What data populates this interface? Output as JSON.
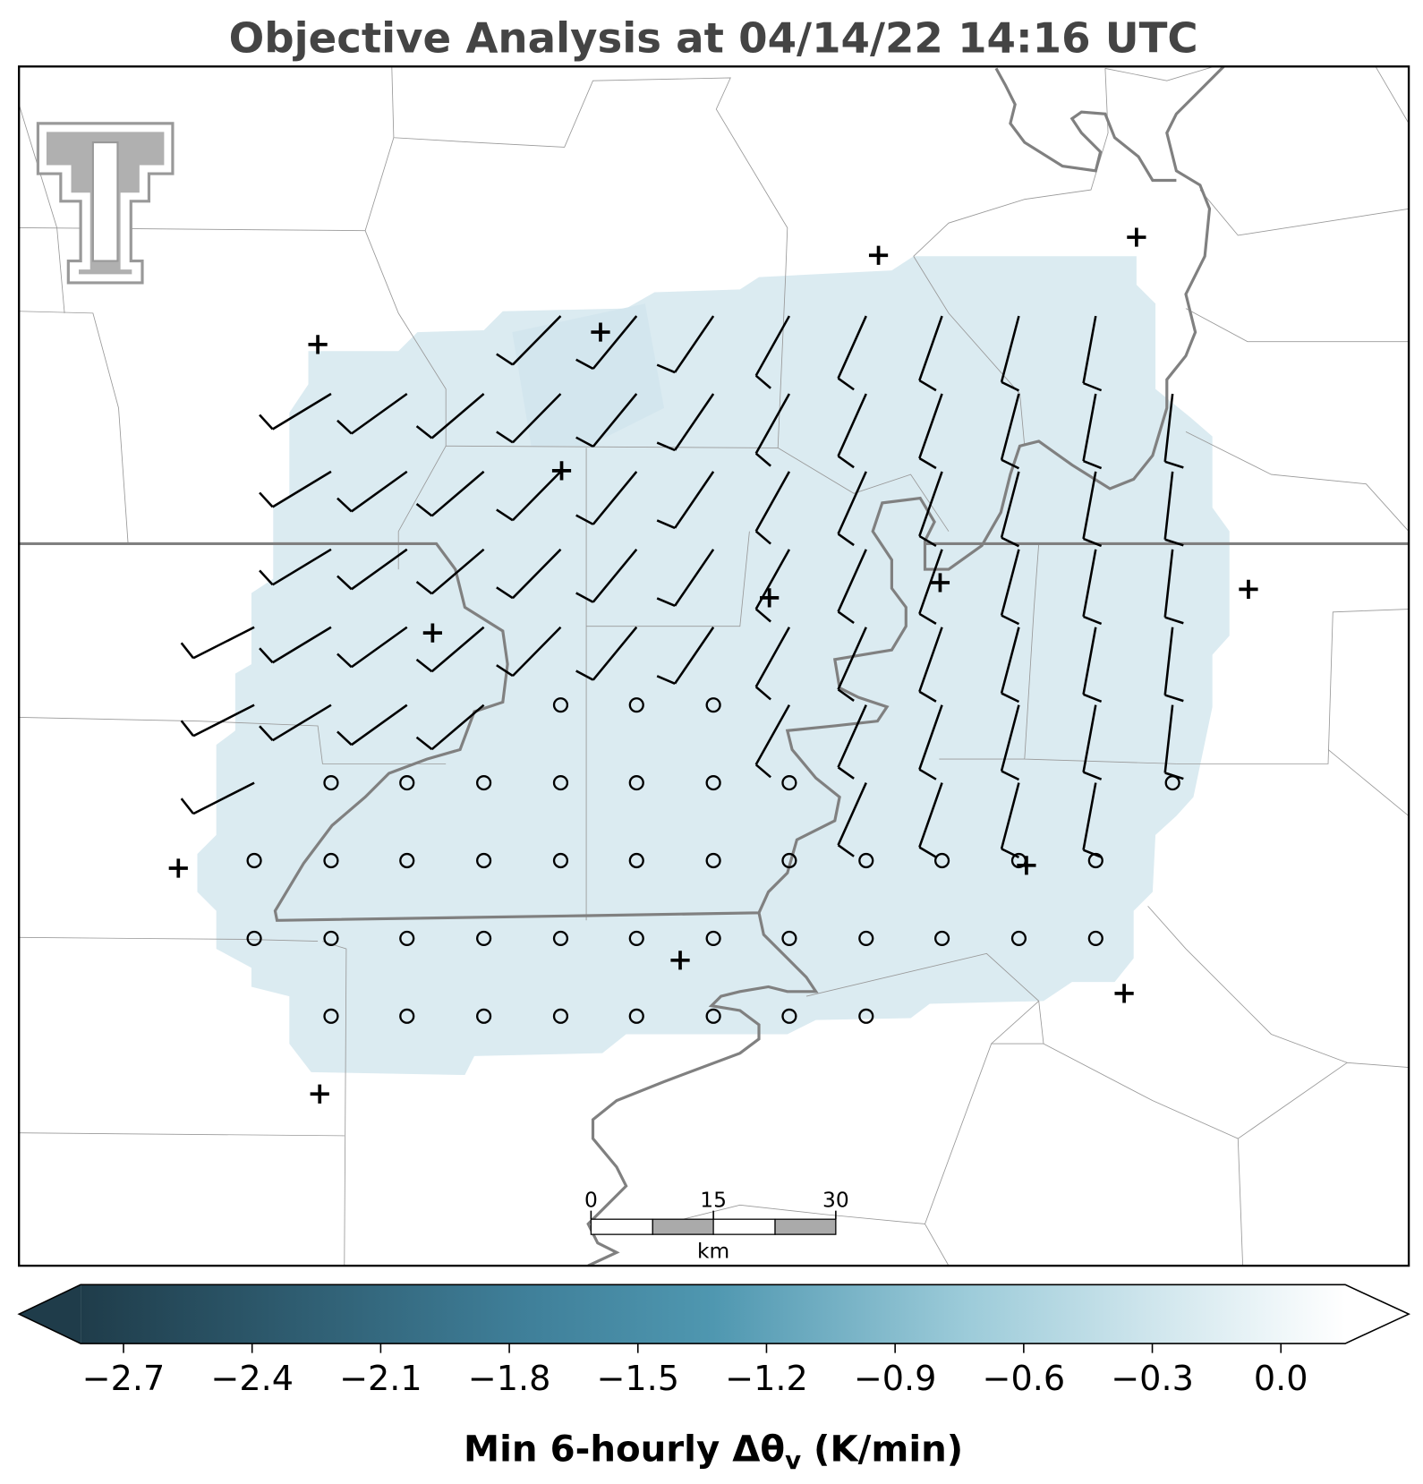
{
  "title": "Objective Analysis at 04/14/22 14:16 UTC",
  "colorbar": {
    "clim": [
      -2.8,
      0.15
    ],
    "ticks": [
      {
        "value": -2.7,
        "label": "−2.7"
      },
      {
        "value": -2.4,
        "label": "−2.4"
      },
      {
        "value": -2.1,
        "label": "−2.1"
      },
      {
        "value": -1.8,
        "label": "−1.8"
      },
      {
        "value": -1.5,
        "label": "−1.5"
      },
      {
        "value": -1.2,
        "label": "−1.2"
      },
      {
        "value": -0.9,
        "label": "−0.9"
      },
      {
        "value": -0.6,
        "label": "−0.6"
      },
      {
        "value": -0.3,
        "label": "−0.3"
      },
      {
        "value": 0,
        "label": "0.0"
      }
    ],
    "label": [
      "Min 6-hourly Δθ",
      "v",
      " (K/min)"
    ]
  },
  "scale_bar": {
    "xlim": [
      0,
      30
    ],
    "ticks": [
      0,
      15,
      30
    ],
    "unit": "km"
  }
}
